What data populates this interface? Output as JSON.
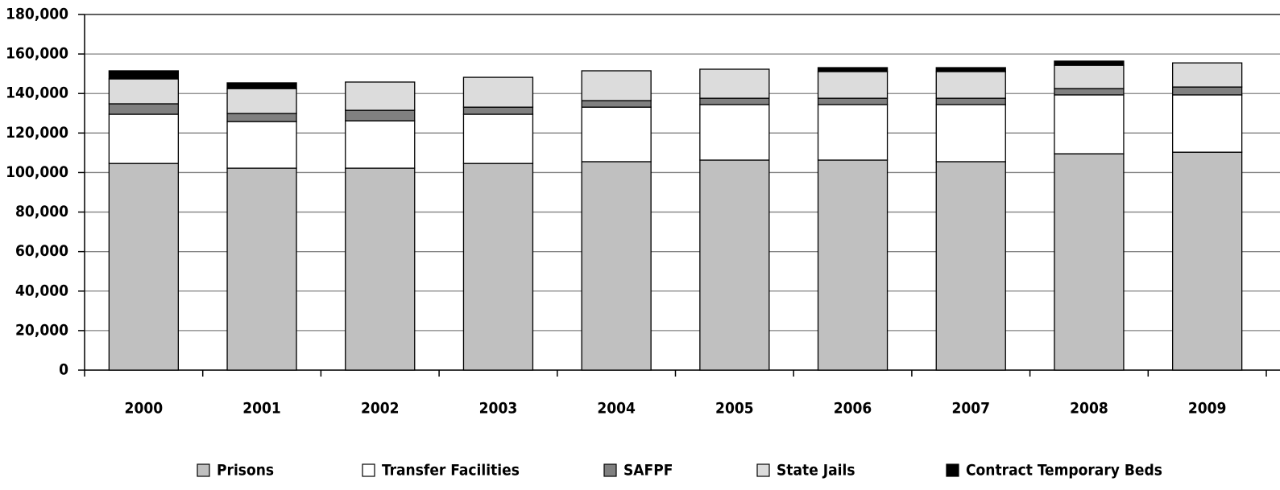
{
  "chart_data": {
    "type": "bar",
    "stacked": true,
    "categories": [
      "2000",
      "2001",
      "2002",
      "2003",
      "2004",
      "2005",
      "2006",
      "2007",
      "2008",
      "2009"
    ],
    "series": [
      {
        "name": "Prisons",
        "color": "#c0c0c0",
        "values": [
          104600,
          102200,
          102200,
          104600,
          105500,
          106300,
          106300,
          105500,
          109500,
          110300
        ]
      },
      {
        "name": "Transfer Facilities",
        "color": "#ffffff",
        "values": [
          24900,
          23600,
          24000,
          24900,
          27600,
          28100,
          28100,
          28900,
          29800,
          29000
        ]
      },
      {
        "name": "SAFPF",
        "color": "#808080",
        "values": [
          5300,
          4100,
          5300,
          3600,
          3300,
          3200,
          3200,
          3200,
          3200,
          4000
        ]
      },
      {
        "name": "State Jails",
        "color": "#dcdcdc",
        "values": [
          12600,
          12600,
          14300,
          15100,
          15100,
          14700,
          13500,
          13500,
          11800,
          12200
        ]
      },
      {
        "name": "Contract Temporary Beds",
        "color": "#000000",
        "values": [
          4100,
          2900,
          0,
          0,
          0,
          0,
          2000,
          2000,
          2100,
          0
        ]
      }
    ],
    "ylim": [
      0,
      180000
    ],
    "yticks": [
      0,
      {
        "value": 20000,
        "label": "20,000"
      },
      {
        "value": 40000,
        "label": "40,000"
      },
      {
        "value": 60000,
        "label": "60,000"
      },
      {
        "value": 80000,
        "label": "80,000"
      },
      {
        "value": 100000,
        "label": "100,000"
      },
      {
        "value": 120000,
        "label": "120,000"
      },
      {
        "value": 140000,
        "label": "140,000"
      },
      {
        "value": 160000,
        "label": "160,000"
      },
      {
        "value": 180000,
        "label": "180,000"
      }
    ],
    "grid": true,
    "legend": "bottom"
  }
}
